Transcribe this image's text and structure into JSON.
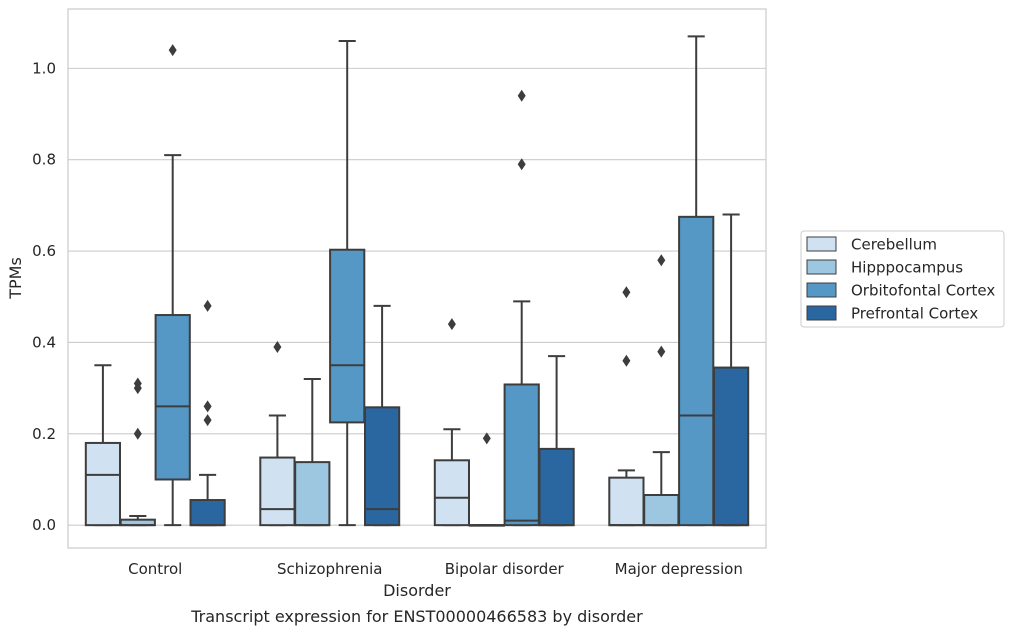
{
  "chart_data": {
    "type": "boxplot",
    "title": "",
    "caption": "Transcript expression for ENST00000466583 by disorder",
    "xlabel": "Disorder",
    "ylabel": "TPMs",
    "ylim": [
      -0.05,
      1.13
    ],
    "yticks": [
      0.0,
      0.2,
      0.4,
      0.6,
      0.8,
      1.0
    ],
    "ytick_labels": [
      "0.0",
      "0.2",
      "0.4",
      "0.6",
      "0.8",
      "1.0"
    ],
    "grid": "horizontal",
    "legend_position": "right",
    "categories": [
      "Control",
      "Schizophrenia",
      "Bipolar disorder",
      "Major depression"
    ],
    "series": [
      {
        "name": "Cerebellum",
        "color": "#d0e2f1",
        "boxes": [
          {
            "whislo": 0.0,
            "q1": 0.0,
            "med": 0.11,
            "q3": 0.18,
            "whishi": 0.35,
            "fliers": []
          },
          {
            "whislo": 0.0,
            "q1": 0.0,
            "med": 0.035,
            "q3": 0.148,
            "whishi": 0.24,
            "fliers": [
              0.39
            ]
          },
          {
            "whislo": 0.0,
            "q1": 0.0,
            "med": 0.06,
            "q3": 0.142,
            "whishi": 0.21,
            "fliers": [
              0.44
            ]
          },
          {
            "whislo": 0.0,
            "q1": 0.0,
            "med": 0.0,
            "q3": 0.104,
            "whishi": 0.12,
            "fliers": [
              0.36,
              0.51
            ]
          }
        ]
      },
      {
        "name": "Hipppocampus",
        "color": "#9dc7e0",
        "boxes": [
          {
            "whislo": 0.0,
            "q1": 0.0,
            "med": 0.0,
            "q3": 0.012,
            "whishi": 0.02,
            "fliers": [
              0.2,
              0.3,
              0.31
            ]
          },
          {
            "whislo": 0.0,
            "q1": 0.0,
            "med": 0.0,
            "q3": 0.138,
            "whishi": 0.32,
            "fliers": []
          },
          {
            "whislo": 0.0,
            "q1": 0.0,
            "med": 0.0,
            "q3": 0.0,
            "whishi": 0.0,
            "fliers": [
              0.19
            ]
          },
          {
            "whislo": 0.0,
            "q1": 0.0,
            "med": 0.0,
            "q3": 0.066,
            "whishi": 0.16,
            "fliers": [
              0.38,
              0.58
            ]
          }
        ]
      },
      {
        "name": "Orbitofontal Cortex",
        "color": "#5598c6",
        "boxes": [
          {
            "whislo": 0.0,
            "q1": 0.1,
            "med": 0.26,
            "q3": 0.46,
            "whishi": 0.81,
            "fliers": [
              1.04
            ]
          },
          {
            "whislo": 0.0,
            "q1": 0.225,
            "med": 0.35,
            "q3": 0.603,
            "whishi": 1.06,
            "fliers": []
          },
          {
            "whislo": 0.0,
            "q1": 0.0,
            "med": 0.01,
            "q3": 0.308,
            "whishi": 0.49,
            "fliers": [
              0.79,
              0.94
            ]
          },
          {
            "whislo": 0.0,
            "q1": 0.0,
            "med": 0.24,
            "q3": 0.675,
            "whishi": 1.07,
            "fliers": []
          }
        ]
      },
      {
        "name": "Prefrontal Cortex",
        "color": "#2a67a0",
        "boxes": [
          {
            "whislo": 0.0,
            "q1": 0.0,
            "med": 0.0,
            "q3": 0.055,
            "whishi": 0.11,
            "fliers": [
              0.23,
              0.26,
              0.48
            ]
          },
          {
            "whislo": 0.0,
            "q1": 0.0,
            "med": 0.035,
            "q3": 0.258,
            "whishi": 0.48,
            "fliers": []
          },
          {
            "whislo": 0.0,
            "q1": 0.0,
            "med": 0.0,
            "q3": 0.167,
            "whishi": 0.37,
            "fliers": []
          },
          {
            "whislo": 0.0,
            "q1": 0.0,
            "med": 0.0,
            "q3": 0.345,
            "whishi": 0.68,
            "fliers": []
          }
        ]
      }
    ]
  }
}
